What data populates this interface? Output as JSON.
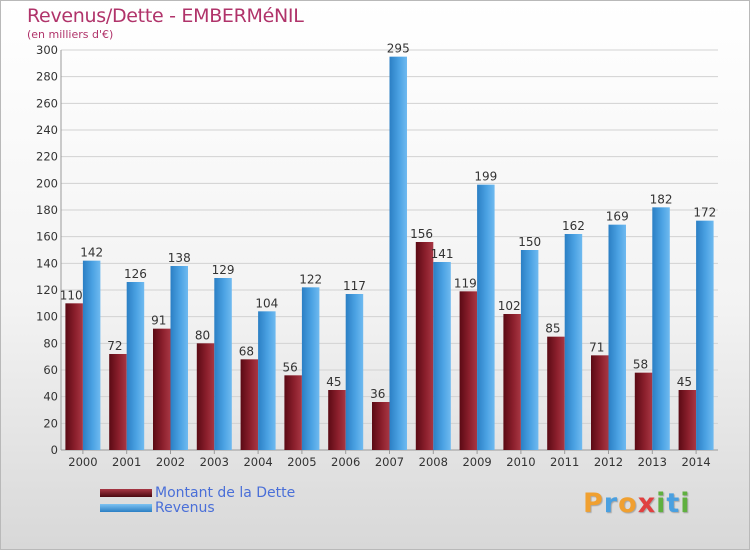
{
  "colors": {
    "debt": "#8b1f2c",
    "revenue": "#4ba2e3",
    "title": "#b0336a",
    "legend_text": "#4a6fd8"
  },
  "chart_data": {
    "type": "bar",
    "title": "Revenus/Dette - EMBERMéNIL",
    "subtitle": "(en milliers d'€)",
    "categories": [
      "2000",
      "2001",
      "2002",
      "2003",
      "2004",
      "2005",
      "2006",
      "2007",
      "2008",
      "2009",
      "2010",
      "2011",
      "2012",
      "2013",
      "2014"
    ],
    "series": [
      {
        "name": "Montant de la Dette",
        "values": [
          110,
          72,
          91,
          80,
          68,
          56,
          45,
          36,
          156,
          119,
          102,
          85,
          71,
          58,
          45
        ]
      },
      {
        "name": "Revenus",
        "values": [
          142,
          126,
          138,
          129,
          104,
          122,
          117,
          295,
          141,
          199,
          150,
          162,
          169,
          182,
          172
        ]
      }
    ],
    "ylim": [
      0,
      300
    ],
    "yticks": [
      0,
      20,
      40,
      60,
      80,
      100,
      120,
      140,
      160,
      180,
      200,
      220,
      240,
      260,
      280,
      300
    ],
    "grid": true,
    "legend": "bottom-left"
  },
  "logo": {
    "letters": [
      "P",
      "r",
      "o",
      "x",
      "i",
      "t",
      "i"
    ],
    "colors": [
      "#f0a030",
      "#4aa0e0",
      "#f0a030",
      "#e04040",
      "#60b040",
      "#4aa0e0",
      "#60b040"
    ]
  }
}
